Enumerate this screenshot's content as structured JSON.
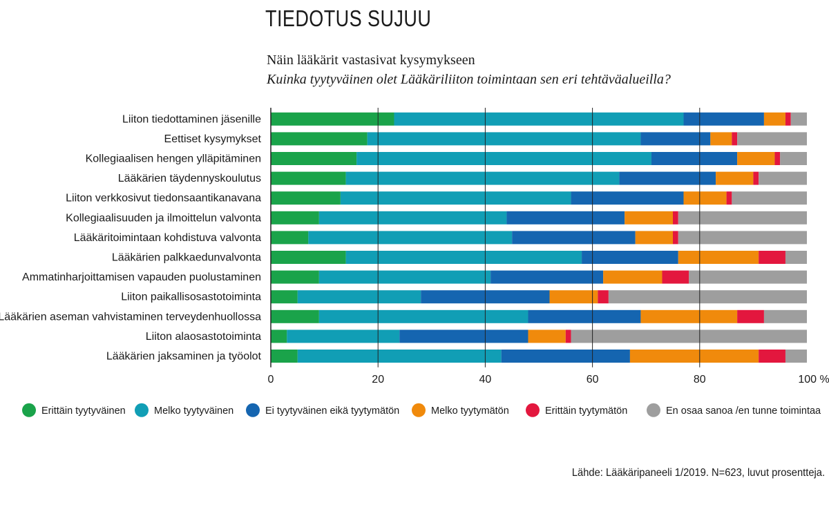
{
  "header": {
    "title": "TIEDOTUS SUJUU",
    "subtitle": "Näin lääkärit vastasivat kysymykseen",
    "question": "Kuinka tyytyväinen olet Lääkäriliiton toimintaan sen eri tehtäväalueilla?"
  },
  "source": "Lähde: Lääkäripaneeli 1/2019. N=623, luvut prosentteja.",
  "chart_data": {
    "type": "bar",
    "orientation": "horizontal",
    "stacked": true,
    "xlim": [
      0,
      100
    ],
    "x_ticks": [
      "0",
      "20",
      "40",
      "60",
      "80",
      "100 %"
    ],
    "grid": true,
    "legend_position": "bottom",
    "categories": [
      "Liiton tiedottaminen jäsenille",
      "Eettiset kysymykset",
      "Kollegiaalisen hengen ylläpitäminen",
      "Lääkärien täydennyskoulutus",
      "Liiton verkkosivut tiedonsaantikanavana",
      "Kollegiaalisuuden ja ilmoittelun valvonta",
      "Lääkäritoimintaan kohdistuva valvonta",
      "Lääkärien palkkaedunvalvonta",
      "Ammatinharjoittamisen vapauden puolustaminen",
      "Liiton paikallisosastotoiminta",
      "Lääkärien aseman vahvistaminen terveydenhuollossa",
      "Liiton alaosastotoiminta",
      "Lääkärien jaksaminen ja työolot"
    ],
    "series": [
      {
        "name": "Erittäin tyytyväinen",
        "color": "#1aa34a",
        "values": [
          23,
          18,
          16,
          14,
          13,
          9,
          7,
          14,
          9,
          5,
          9,
          3,
          5
        ]
      },
      {
        "name": "Melko tyytyväinen",
        "color": "#119eb5",
        "values": [
          54,
          51,
          55,
          51,
          43,
          35,
          38,
          44,
          32,
          23,
          39,
          21,
          38
        ]
      },
      {
        "name": "Ei tyytyväinen eikä tyytymätön",
        "color": "#1565b0",
        "values": [
          15,
          13,
          16,
          18,
          21,
          22,
          23,
          18,
          21,
          24,
          21,
          24,
          24
        ]
      },
      {
        "name": "Melko tyytymätön",
        "color": "#f08a0c",
        "values": [
          4,
          4,
          7,
          7,
          8,
          9,
          7,
          15,
          11,
          9,
          18,
          7,
          24
        ]
      },
      {
        "name": "Erittäin tyytymätön",
        "color": "#e3173e",
        "values": [
          1,
          1,
          1,
          1,
          1,
          1,
          1,
          5,
          5,
          2,
          5,
          1,
          5
        ]
      },
      {
        "name": "En osaa sanoa /en tunne toimintaa",
        "color": "#9e9e9e",
        "values": [
          3,
          13,
          5,
          9,
          14,
          24,
          24,
          4,
          22,
          37,
          8,
          44,
          4
        ]
      }
    ]
  }
}
